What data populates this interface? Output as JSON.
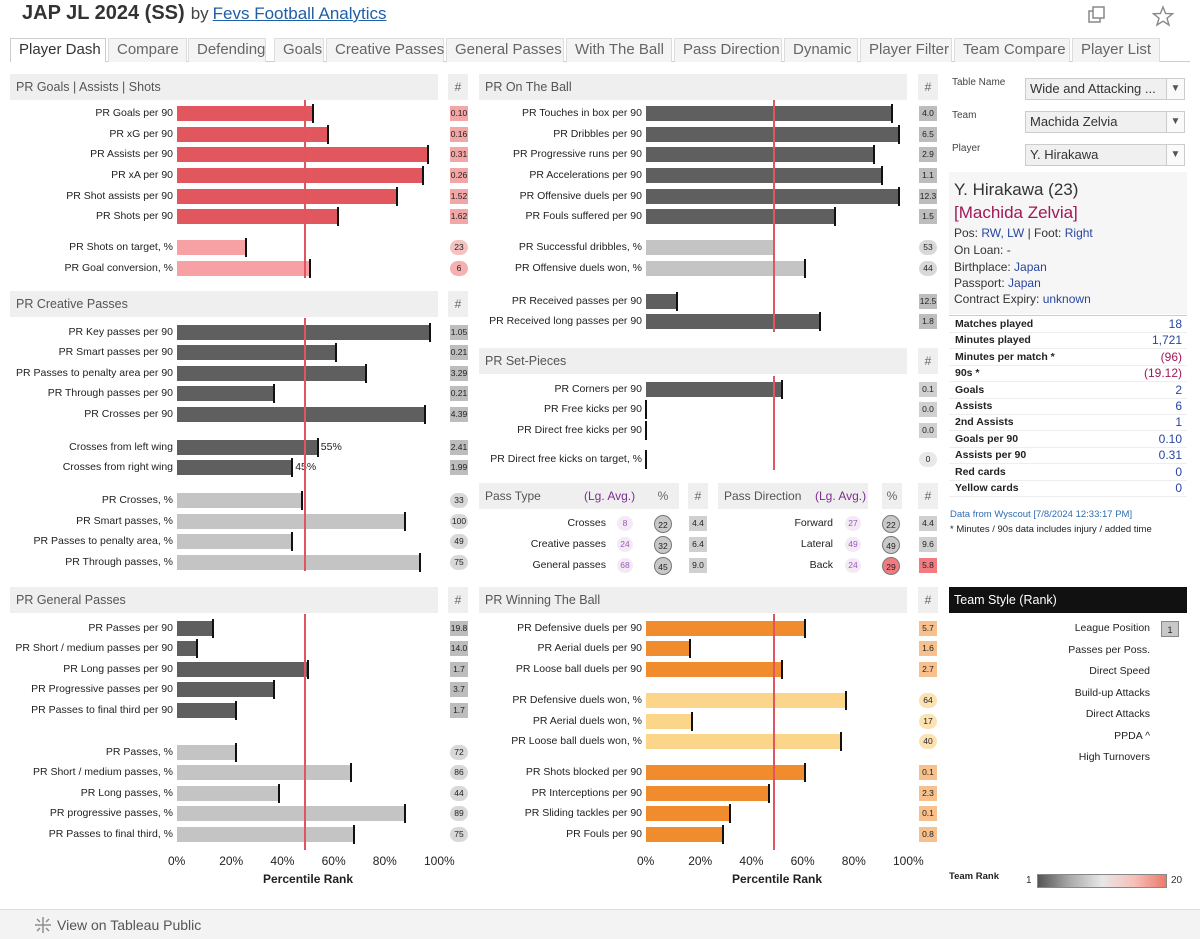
{
  "header": {
    "title": "JAP JL 2024 (SS)",
    "by": "by",
    "author": "Fevs Football Analytics"
  },
  "tabs": [
    "Player Dash",
    "Compare",
    "Defending",
    "Goals",
    "Creative Passes",
    "General Passes",
    "With The Ball",
    "Pass Direction",
    "Dynamic",
    "Player Filter",
    "Team Compare",
    "Player List"
  ],
  "sections": {
    "goals": "PR Goals | Assists | Shots",
    "onball": "PR On The Ball",
    "creative": "PR Creative Passes",
    "setpieces": "PR Set-Pieces",
    "general": "PR General Passes",
    "winning": "PR Winning The Ball",
    "hash": "#"
  },
  "rows": {
    "g1": {
      "label": "PR Goals per 90",
      "pr": 0.53,
      "val": "0.10"
    },
    "g2": {
      "label": "PR xG per 90",
      "pr": 0.59,
      "val": "0.16"
    },
    "g3": {
      "label": "PR Assists per 90",
      "pr": 0.98,
      "val": "0.31"
    },
    "g4": {
      "label": "PR xA per 90",
      "pr": 0.96,
      "val": "0.26"
    },
    "g5": {
      "label": "PR Shot assists per 90",
      "pr": 0.86,
      "val": "1.52"
    },
    "g6": {
      "label": "PR Shots per 90",
      "pr": 0.63,
      "val": "1.62"
    },
    "g7": {
      "label": "PR Shots on target, %",
      "pr": 0.27,
      "val": "23"
    },
    "g8": {
      "label": "PR Goal conversion, %",
      "pr": 0.52,
      "val": "6"
    },
    "c1": {
      "label": "PR Key passes per 90",
      "pr": 0.99,
      "val": "1.05"
    },
    "c2": {
      "label": "PR Smart passes per 90",
      "pr": 0.62,
      "val": "0.21"
    },
    "c3": {
      "label": "PR Passes to penalty area per 90",
      "pr": 0.74,
      "val": "3.29"
    },
    "c4": {
      "label": "PR Through passes per 90",
      "pr": 0.38,
      "val": "0.21"
    },
    "c5": {
      "label": "PR Crosses per 90",
      "pr": 0.97,
      "val": "4.39"
    },
    "c6": {
      "label": "Crosses from left wing",
      "pr": 0.55,
      "val": "2.41",
      "pct": "55%"
    },
    "c7": {
      "label": "Crosses from right wing",
      "pr": 0.45,
      "val": "1.99",
      "pct": "45%"
    },
    "c8": {
      "label": "PR Crosses, %",
      "pr": 0.49,
      "val": "33"
    },
    "c9": {
      "label": "PR Smart passes, %",
      "pr": 0.89,
      "val": "100"
    },
    "c10": {
      "label": "PR Passes to penalty area, %",
      "pr": 0.45,
      "val": "49"
    },
    "c11": {
      "label": "PR Through passes, %",
      "pr": 0.95,
      "val": "75"
    },
    "p1": {
      "label": "PR Passes per 90",
      "pr": 0.14,
      "val": "19.8"
    },
    "p2": {
      "label": "PR Short / medium passes per 90",
      "pr": 0.08,
      "val": "14.0"
    },
    "p3": {
      "label": "PR Long passes per 90",
      "pr": 0.51,
      "val": "1.7"
    },
    "p4": {
      "label": "PR Progressive passes per 90",
      "pr": 0.38,
      "val": "3.7"
    },
    "p5": {
      "label": "PR Passes to final third per 90",
      "pr": 0.23,
      "val": "1.7"
    },
    "p6": {
      "label": "PR Passes, %",
      "pr": 0.23,
      "val": "72"
    },
    "p7": {
      "label": "PR Short / medium passes, %",
      "pr": 0.68,
      "val": "86"
    },
    "p8": {
      "label": "PR Long passes, %",
      "pr": 0.4,
      "val": "44"
    },
    "p9": {
      "label": "PR progressive passes, %",
      "pr": 0.89,
      "val": "89"
    },
    "p10": {
      "label": "PR Passes to final third, %",
      "pr": 0.69,
      "val": "75"
    },
    "o1": {
      "label": "PR Touches in box per 90",
      "pr": 0.96,
      "val": "4.0"
    },
    "o2": {
      "label": "PR Dribbles per 90",
      "pr": 0.99,
      "val": "6.5"
    },
    "o3": {
      "label": "PR Progressive runs per 90",
      "pr": 0.89,
      "val": "2.9"
    },
    "o4": {
      "label": "PR Accelerations per 90",
      "pr": 0.92,
      "val": "1.1"
    },
    "o5": {
      "label": "PR Offensive duels per 90",
      "pr": 0.99,
      "val": "12.3"
    },
    "o6": {
      "label": "PR Fouls suffered per 90",
      "pr": 0.74,
      "val": "1.5"
    },
    "o7": {
      "label": "PR Successful dribbles, %",
      "pr": 0.5,
      "val": "53"
    },
    "o8": {
      "label": "PR Offensive duels won, %",
      "pr": 0.62,
      "val": "44"
    },
    "o9": {
      "label": "PR Received passes per 90",
      "pr": 0.12,
      "val": "12.5"
    },
    "o10": {
      "label": "PR Received long passes per 90",
      "pr": 0.68,
      "val": "1.8"
    },
    "s1": {
      "label": "PR Corners per 90",
      "pr": 0.53,
      "val": "0.1"
    },
    "s2": {
      "label": "PR Free kicks per 90",
      "pr": 0.0,
      "val": "0.0"
    },
    "s3": {
      "label": "PR Direct free kicks per 90",
      "pr": 0.0,
      "val": "0.0"
    },
    "s4": {
      "label": "PR Direct free kicks on target, %",
      "pr": 0.0,
      "val": "0"
    },
    "w1": {
      "label": "PR Defensive duels per 90",
      "pr": 0.62,
      "val": "5.7"
    },
    "w2": {
      "label": "PR Aerial duels per 90",
      "pr": 0.17,
      "val": "1.6"
    },
    "w3": {
      "label": "PR Loose ball duels per 90",
      "pr": 0.53,
      "val": "2.7"
    },
    "w4": {
      "label": "PR Defensive duels won, %",
      "pr": 0.78,
      "val": "64"
    },
    "w5": {
      "label": "PR Aerial duels won, %",
      "pr": 0.18,
      "val": "17"
    },
    "w6": {
      "label": "PR Loose ball duels won, %",
      "pr": 0.76,
      "val": "40"
    },
    "w7": {
      "label": "PR Shots blocked per 90",
      "pr": 0.62,
      "val": "0.1"
    },
    "w8": {
      "label": "PR Interceptions per 90",
      "pr": 0.48,
      "val": "2.3"
    },
    "w9": {
      "label": "PR Sliding tackles per 90",
      "pr": 0.33,
      "val": "0.1"
    },
    "w10": {
      "label": "PR Fouls per 90",
      "pr": 0.3,
      "val": "0.8"
    }
  },
  "passtype": {
    "title": "Pass Type",
    "avg": "(Lg. Avg.)",
    "pct": "%",
    "hash": "#",
    "rows": [
      {
        "label": "Crosses",
        "avg": "8",
        "pct": "22",
        "val": "4.4"
      },
      {
        "label": "Creative passes",
        "avg": "24",
        "pct": "32",
        "val": "6.4"
      },
      {
        "label": "General passes",
        "avg": "68",
        "pct": "45",
        "val": "9.0"
      }
    ]
  },
  "passdir": {
    "title": "Pass Direction",
    "avg": "(Lg. Avg.)",
    "pct": "%",
    "hash": "#",
    "rows": [
      {
        "label": "Forward",
        "avg": "27",
        "pct": "22",
        "val": "4.4"
      },
      {
        "label": "Lateral",
        "avg": "49",
        "pct": "49",
        "val": "9.6"
      },
      {
        "label": "Back",
        "avg": "24",
        "pct": "29",
        "val": "5.8"
      }
    ]
  },
  "axis": {
    "ticks": [
      "0%",
      "20%",
      "40%",
      "60%",
      "80%",
      "100%"
    ],
    "label": "Percentile Rank"
  },
  "filters": {
    "table_name_label": "Table Name",
    "table_name_value": "Wide and Attacking ...",
    "team_label": "Team",
    "team_value": "Machida Zelvia",
    "player_label": "Player",
    "player_value": "Y. Hirakawa"
  },
  "player": {
    "name": "Y. Hirakawa (23)",
    "club": "[Machida Zelvia]",
    "pos_label": "Pos:",
    "pos_value": "RW, LW",
    "foot_label": "| Foot:",
    "foot_value": "Right",
    "loan": "On Loan: -",
    "birth_label": "Birthplace:",
    "birth_value": "Japan",
    "passport_label": "Passport:",
    "passport_value": "Japan",
    "contract_label": "Contract Expiry:",
    "contract_value": "unknown"
  },
  "stats": [
    {
      "label": "Matches played",
      "value": "18"
    },
    {
      "label": "Minutes played",
      "value": "1,721"
    },
    {
      "label": "Minutes per match *",
      "value": "(96)"
    },
    {
      "label": "90s *",
      "value": "(19.12)"
    },
    {
      "label": "Goals",
      "value": "2"
    },
    {
      "label": "Assists",
      "value": "6"
    },
    {
      "label": "2nd Assists",
      "value": "1"
    },
    {
      "label": "Goals per 90",
      "value": "0.10"
    },
    {
      "label": "Assists per 90",
      "value": "0.31"
    },
    {
      "label": "Red cards",
      "value": "0"
    },
    {
      "label": "Yellow cards",
      "value": "0"
    }
  ],
  "source": {
    "text": "Data from Wyscout [7/8/2024 12:33:17 PM]",
    "note": "* Minutes / 90s data includes injury / added time"
  },
  "team_style": {
    "title": "Team Style (Rank)",
    "items": [
      {
        "label": "League Position",
        "value": "1"
      },
      {
        "label": "Passes per Poss.",
        "value": ""
      },
      {
        "label": "Direct Speed",
        "value": ""
      },
      {
        "label": "Build-up Attacks",
        "value": ""
      },
      {
        "label": "Direct Attacks",
        "value": ""
      },
      {
        "label": "PPDA ^",
        "value": ""
      },
      {
        "label": "High Turnovers",
        "value": ""
      }
    ],
    "rank_label": "Team Rank",
    "rank_min": "1",
    "rank_max": "20"
  },
  "footer": {
    "text": "View on Tableau Public"
  },
  "colors": {
    "red": "#e2575e",
    "pink": "#f7a1a4",
    "dark": "#5f5f5f",
    "light": "#c4c4c4",
    "orange": "#f08c2e",
    "yellow": "#fad58a",
    "avgline": "#e05560",
    "link": "#1f5fa6",
    "navy": "#2845a0",
    "maroon": "#a0185a"
  }
}
